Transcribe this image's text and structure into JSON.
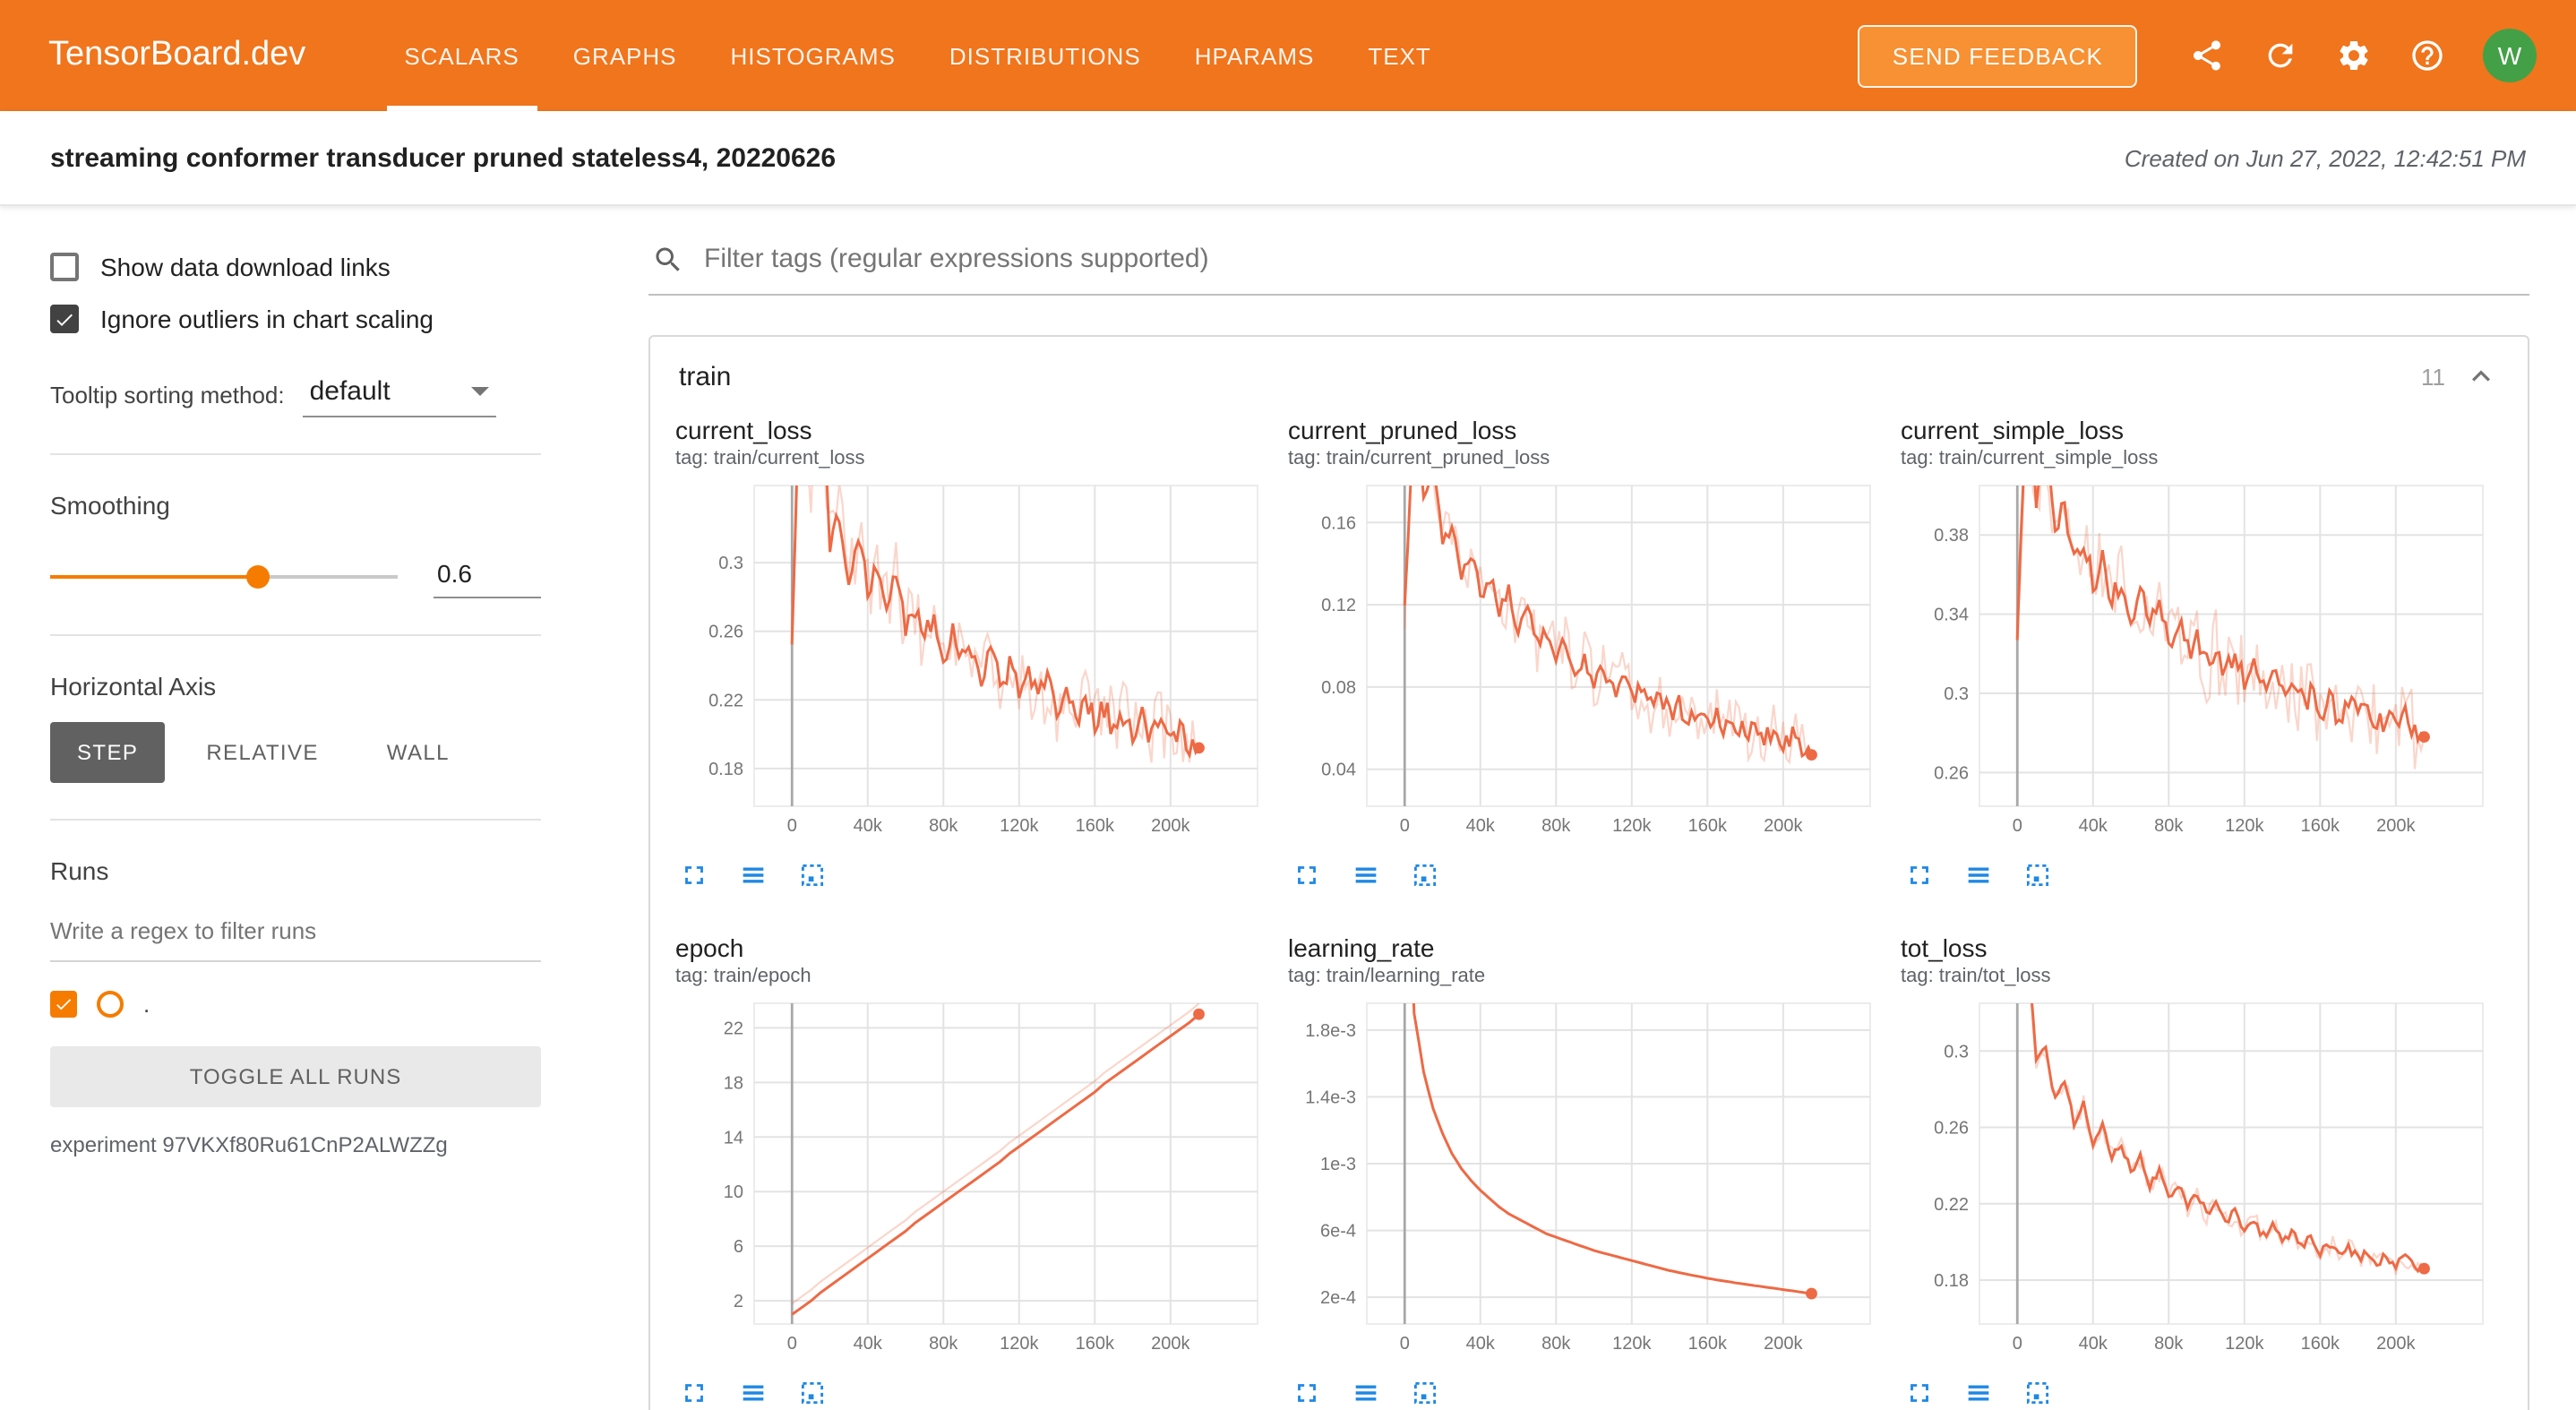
{
  "colors": {
    "header": "#f0751c",
    "accent_orange": "#f57c00",
    "run_line": "#ed6a45",
    "icon_blue": "#1e88e5",
    "avatar_green": "#43a047"
  },
  "header": {
    "logo": "TensorBoard.dev",
    "tabs": [
      {
        "label": "SCALARS",
        "active": true
      },
      {
        "label": "GRAPHS",
        "active": false
      },
      {
        "label": "HISTOGRAMS",
        "active": false
      },
      {
        "label": "DISTRIBUTIONS",
        "active": false
      },
      {
        "label": "HPARAMS",
        "active": false
      },
      {
        "label": "TEXT",
        "active": false
      }
    ],
    "feedback_button": "SEND FEEDBACK",
    "icons": [
      "share-icon",
      "refresh-icon",
      "settings-icon",
      "help-icon"
    ],
    "avatar": "W"
  },
  "experiment_bar": {
    "title": "streaming conformer transducer pruned stateless4, 20220626",
    "created": "Created on Jun 27, 2022, 12:42:51 PM"
  },
  "sidebar": {
    "show_download": {
      "label": "Show data download links",
      "checked": false
    },
    "ignore_outliers": {
      "label": "Ignore outliers in chart scaling",
      "checked": true
    },
    "tooltip_sorting": {
      "label": "Tooltip sorting method:",
      "value": "default"
    },
    "smoothing": {
      "label": "Smoothing",
      "value": "0.6",
      "fraction": 0.6
    },
    "horizontal_axis": {
      "label": "Horizontal Axis",
      "options": [
        "STEP",
        "RELATIVE",
        "WALL"
      ],
      "selected": "STEP"
    },
    "runs": {
      "label": "Runs",
      "filter_placeholder": "Write a regex to filter runs",
      "run_name": ".",
      "run_checked": true,
      "toggle_button": "TOGGLE ALL RUNS",
      "experiment": "experiment 97VKXf80Ru61CnP2ALWZZg"
    }
  },
  "main": {
    "filter_placeholder": "Filter tags (regular expressions supported)",
    "group": {
      "name": "train",
      "count": "11"
    }
  },
  "chart_data": [
    {
      "type": "line",
      "title": "current_loss",
      "tag": "tag: train/current_loss",
      "color": "#ed6a45",
      "grid": true,
      "x_start": 0,
      "x_step": 5000,
      "x_ticks": [
        "0",
        "40k",
        "80k",
        "120k",
        "160k",
        "200k"
      ],
      "x_tick_values": [
        0,
        40000,
        80000,
        120000,
        160000,
        200000
      ],
      "x_domain": [
        -20000,
        246000
      ],
      "y_ticks": [
        0.18,
        0.22,
        0.26,
        0.3
      ],
      "y_tick_labels": [
        "0.18",
        "0.22",
        "0.26",
        "0.3"
      ],
      "y_domain": [
        0.158,
        0.345
      ],
      "values": [
        0.26,
        0.44,
        0.35,
        0.42,
        0.31,
        0.33,
        0.29,
        0.31,
        0.285,
        0.3,
        0.275,
        0.29,
        0.265,
        0.275,
        0.255,
        0.268,
        0.248,
        0.258,
        0.242,
        0.252,
        0.236,
        0.246,
        0.23,
        0.24,
        0.225,
        0.235,
        0.22,
        0.229,
        0.215,
        0.224,
        0.211,
        0.219,
        0.207,
        0.215,
        0.204,
        0.211,
        0.201,
        0.208,
        0.199,
        0.205,
        0.197,
        0.203,
        0.195,
        0.192
      ],
      "line_amp": 0.008,
      "raw_amp": 0.022,
      "dense": 3,
      "seed": 1,
      "end_dot": true
    },
    {
      "type": "line",
      "title": "current_pruned_loss",
      "tag": "tag: train/current_pruned_loss",
      "color": "#ed6a45",
      "grid": true,
      "x_start": 0,
      "x_step": 5000,
      "x_ticks": [
        "0",
        "40k",
        "80k",
        "120k",
        "160k",
        "200k"
      ],
      "x_tick_values": [
        0,
        40000,
        80000,
        120000,
        160000,
        200000
      ],
      "x_domain": [
        -20000,
        246000
      ],
      "y_ticks": [
        0.04,
        0.08,
        0.12,
        0.16
      ],
      "y_tick_labels": [
        "0.04",
        "0.08",
        "0.12",
        "0.16"
      ],
      "y_domain": [
        0.022,
        0.178
      ],
      "values": [
        0.12,
        0.22,
        0.17,
        0.19,
        0.15,
        0.16,
        0.135,
        0.145,
        0.125,
        0.135,
        0.115,
        0.125,
        0.108,
        0.116,
        0.1,
        0.108,
        0.094,
        0.101,
        0.088,
        0.095,
        0.083,
        0.089,
        0.078,
        0.084,
        0.074,
        0.079,
        0.07,
        0.075,
        0.067,
        0.071,
        0.064,
        0.068,
        0.061,
        0.065,
        0.059,
        0.062,
        0.057,
        0.06,
        0.055,
        0.058,
        0.053,
        0.056,
        0.051,
        0.047
      ],
      "line_amp": 0.005,
      "raw_amp": 0.014,
      "dense": 3,
      "seed": 2,
      "end_dot": true
    },
    {
      "type": "line",
      "title": "current_simple_loss",
      "tag": "tag: train/current_simple_loss",
      "color": "#ed6a45",
      "grid": true,
      "x_start": 0,
      "x_step": 5000,
      "x_ticks": [
        "0",
        "40k",
        "80k",
        "120k",
        "160k",
        "200k"
      ],
      "x_tick_values": [
        0,
        40000,
        80000,
        120000,
        160000,
        200000
      ],
      "x_domain": [
        -20000,
        246000
      ],
      "y_ticks": [
        0.26,
        0.3,
        0.34,
        0.38
      ],
      "y_tick_labels": [
        "0.26",
        "0.3",
        "0.34",
        "0.38"
      ],
      "y_domain": [
        0.243,
        0.405
      ],
      "values": [
        0.33,
        0.46,
        0.4,
        0.43,
        0.38,
        0.395,
        0.366,
        0.378,
        0.356,
        0.368,
        0.348,
        0.358,
        0.34,
        0.35,
        0.333,
        0.342,
        0.327,
        0.335,
        0.321,
        0.329,
        0.315,
        0.323,
        0.31,
        0.317,
        0.306,
        0.312,
        0.302,
        0.308,
        0.298,
        0.304,
        0.295,
        0.3,
        0.292,
        0.297,
        0.289,
        0.294,
        0.287,
        0.291,
        0.285,
        0.289,
        0.283,
        0.287,
        0.281,
        0.278
      ],
      "line_amp": 0.007,
      "raw_amp": 0.02,
      "dense": 3,
      "seed": 3,
      "end_dot": true
    },
    {
      "type": "line",
      "title": "epoch",
      "tag": "tag: train/epoch",
      "color": "#ed6a45",
      "grid": true,
      "x_start": 0,
      "x_step": 5000,
      "x_ticks": [
        "0",
        "40k",
        "80k",
        "120k",
        "160k",
        "200k"
      ],
      "x_tick_values": [
        0,
        40000,
        80000,
        120000,
        160000,
        200000
      ],
      "x_domain": [
        -20000,
        246000
      ],
      "y_ticks": [
        2,
        6,
        10,
        14,
        18,
        22
      ],
      "y_tick_labels": [
        "2",
        "6",
        "10",
        "14",
        "18",
        "22"
      ],
      "y_domain": [
        0.3,
        23.8
      ],
      "values": [
        1.0,
        1.5,
        2.0,
        2.6,
        3.1,
        3.6,
        4.1,
        4.6,
        5.1,
        5.6,
        6.1,
        6.6,
        7.1,
        7.7,
        8.2,
        8.7,
        9.2,
        9.7,
        10.2,
        10.7,
        11.2,
        11.7,
        12.2,
        12.8,
        13.3,
        13.8,
        14.3,
        14.8,
        15.3,
        15.8,
        16.3,
        16.8,
        17.3,
        17.9,
        18.4,
        18.9,
        19.4,
        19.9,
        20.4,
        20.9,
        21.4,
        21.9,
        22.4,
        23.0
      ],
      "line_amp": 0,
      "raw_amp": 0,
      "raw_offset": 0.8,
      "dense": 1,
      "seed": 4,
      "end_dot": true
    },
    {
      "type": "line",
      "title": "learning_rate",
      "tag": "tag: train/learning_rate",
      "color": "#ed6a45",
      "grid": true,
      "x_start": 0,
      "x_step": 5000,
      "x_ticks": [
        "0",
        "40k",
        "80k",
        "120k",
        "160k",
        "200k"
      ],
      "x_tick_values": [
        0,
        40000,
        80000,
        120000,
        160000,
        200000
      ],
      "x_domain": [
        -20000,
        246000
      ],
      "y_ticks": [
        0.0002,
        0.0006,
        0.001,
        0.0014,
        0.0018
      ],
      "y_tick_labels": [
        "2e-4",
        "6e-4",
        "1e-3",
        "1.4e-3",
        "1.8e-3"
      ],
      "y_domain": [
        4e-05,
        0.00196
      ],
      "values": [
        0.0035,
        0.0019,
        0.00155,
        0.00133,
        0.00118,
        0.00106,
        0.00097,
        0.0009,
        0.00084,
        0.00079,
        0.00074,
        0.0007,
        0.00067,
        0.00064,
        0.00061,
        0.00058,
        0.00056,
        0.00054,
        0.00052,
        0.0005,
        0.00048,
        0.000465,
        0.00045,
        0.000435,
        0.00042,
        0.000405,
        0.00039,
        0.000375,
        0.00036,
        0.000348,
        0.000336,
        0.000325,
        0.000314,
        0.000304,
        0.000295,
        0.000286,
        0.000278,
        0.00027,
        0.000262,
        0.000254,
        0.000246,
        0.000238,
        0.00023,
        0.000222
      ],
      "line_amp": 0,
      "raw_amp": 0,
      "dense": 2,
      "seed": 5,
      "end_dot": true
    },
    {
      "type": "line",
      "title": "tot_loss",
      "tag": "tag: train/tot_loss",
      "color": "#ed6a45",
      "grid": true,
      "x_start": 0,
      "x_step": 5000,
      "x_ticks": [
        "0",
        "40k",
        "80k",
        "120k",
        "160k",
        "200k"
      ],
      "x_tick_values": [
        0,
        40000,
        80000,
        120000,
        160000,
        200000
      ],
      "x_domain": [
        -20000,
        246000
      ],
      "y_ticks": [
        0.18,
        0.22,
        0.26,
        0.3
      ],
      "y_tick_labels": [
        "0.18",
        "0.22",
        "0.26",
        "0.3"
      ],
      "y_domain": [
        0.157,
        0.325
      ],
      "values": [
        0.42,
        0.36,
        0.295,
        0.3,
        0.275,
        0.285,
        0.262,
        0.272,
        0.252,
        0.262,
        0.244,
        0.252,
        0.237,
        0.244,
        0.23,
        0.237,
        0.224,
        0.231,
        0.219,
        0.226,
        0.214,
        0.221,
        0.21,
        0.216,
        0.206,
        0.212,
        0.203,
        0.208,
        0.2,
        0.205,
        0.197,
        0.202,
        0.195,
        0.199,
        0.193,
        0.197,
        0.191,
        0.195,
        0.189,
        0.193,
        0.188,
        0.191,
        0.187,
        0.186
      ],
      "line_amp": 0.0025,
      "raw_amp": 0.006,
      "dense": 3,
      "seed": 6,
      "end_dot": true
    }
  ]
}
